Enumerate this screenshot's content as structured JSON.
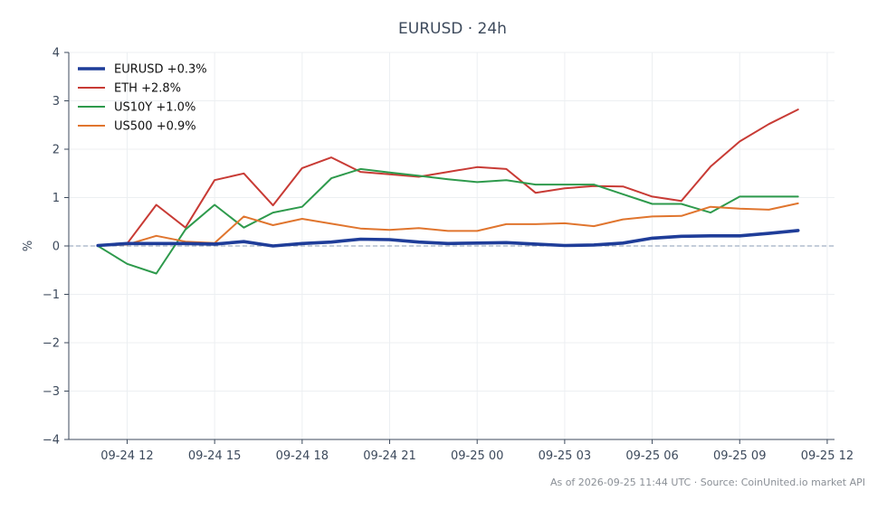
{
  "chart_data": {
    "type": "line",
    "title": "EURUSD · 24h",
    "xlabel": "",
    "ylabel": "%",
    "ylim": [
      -4,
      4
    ],
    "xlim": [
      "2026-09-24T10:00",
      "2026-09-25T12:15"
    ],
    "yticks": [
      4,
      3,
      2,
      1,
      0,
      -1,
      -2,
      -3,
      -4
    ],
    "ytick_labels": [
      "4",
      "3",
      "2",
      "1",
      "0",
      "−1",
      "−2",
      "−3",
      "−4"
    ],
    "xticks": [
      "2026-09-24T12:00",
      "2026-09-24T15:00",
      "2026-09-24T18:00",
      "2026-09-24T21:00",
      "2026-09-25T00:00",
      "2026-09-25T03:00",
      "2026-09-25T06:00",
      "2026-09-25T09:00",
      "2026-09-25T12:00"
    ],
    "xtick_labels": [
      "09-24 12",
      "09-24 15",
      "09-24 18",
      "09-24 21",
      "09-25 00",
      "09-25 03",
      "09-25 06",
      "09-25 09",
      "09-25 12"
    ],
    "grid": true,
    "zero_line": true,
    "legend_position": "top-left",
    "x": [
      "2026-09-24T11:00",
      "2026-09-24T12:00",
      "2026-09-24T13:00",
      "2026-09-24T14:00",
      "2026-09-24T15:00",
      "2026-09-24T16:00",
      "2026-09-24T17:00",
      "2026-09-24T18:00",
      "2026-09-24T19:00",
      "2026-09-24T20:00",
      "2026-09-24T21:00",
      "2026-09-24T22:00",
      "2026-09-24T23:00",
      "2026-09-25T00:00",
      "2026-09-25T01:00",
      "2026-09-25T02:00",
      "2026-09-25T03:00",
      "2026-09-25T04:00",
      "2026-09-25T05:00",
      "2026-09-25T06:00",
      "2026-09-25T07:00",
      "2026-09-25T08:00",
      "2026-09-25T09:00",
      "2026-09-25T10:00",
      "2026-09-25T11:00"
    ],
    "series": [
      {
        "name": "EURUSD +0.3%",
        "color": "#1f3d99",
        "emphasis": true,
        "values": [
          0.01,
          0.05,
          0.05,
          0.05,
          0.04,
          0.09,
          0.0,
          0.05,
          0.08,
          0.14,
          0.13,
          0.08,
          0.05,
          0.06,
          0.07,
          0.04,
          0.01,
          0.02,
          0.06,
          0.16,
          0.2,
          0.21,
          0.21,
          0.26,
          0.32
        ]
      },
      {
        "name": "ETH +2.8%",
        "color": "#c83b35",
        "values": [
          0.01,
          0.05,
          0.85,
          0.38,
          1.36,
          1.5,
          0.84,
          1.61,
          1.83,
          1.53,
          1.48,
          1.43,
          1.53,
          1.63,
          1.59,
          1.1,
          1.19,
          1.24,
          1.23,
          1.02,
          0.93,
          1.64,
          2.16,
          2.52,
          2.82
        ]
      },
      {
        "name": "US10Y +1.0%",
        "color": "#2e9a4c",
        "values": [
          0.0,
          -0.37,
          -0.57,
          0.34,
          0.85,
          0.38,
          0.69,
          0.81,
          1.4,
          1.59,
          1.52,
          1.45,
          1.38,
          1.32,
          1.36,
          1.27,
          1.27,
          1.27,
          1.07,
          0.87,
          0.87,
          0.69,
          1.02,
          1.02,
          1.02
        ]
      },
      {
        "name": "US500 +0.9%",
        "color": "#e0752e",
        "values": [
          0.01,
          0.03,
          0.21,
          0.09,
          0.06,
          0.61,
          0.43,
          0.56,
          0.46,
          0.36,
          0.33,
          0.37,
          0.31,
          0.31,
          0.45,
          0.45,
          0.47,
          0.41,
          0.55,
          0.61,
          0.62,
          0.81,
          0.77,
          0.75,
          0.88
        ]
      }
    ]
  },
  "footer": "As of 2026-09-25 11:44 UTC · Source: CoinUnited.io market API"
}
